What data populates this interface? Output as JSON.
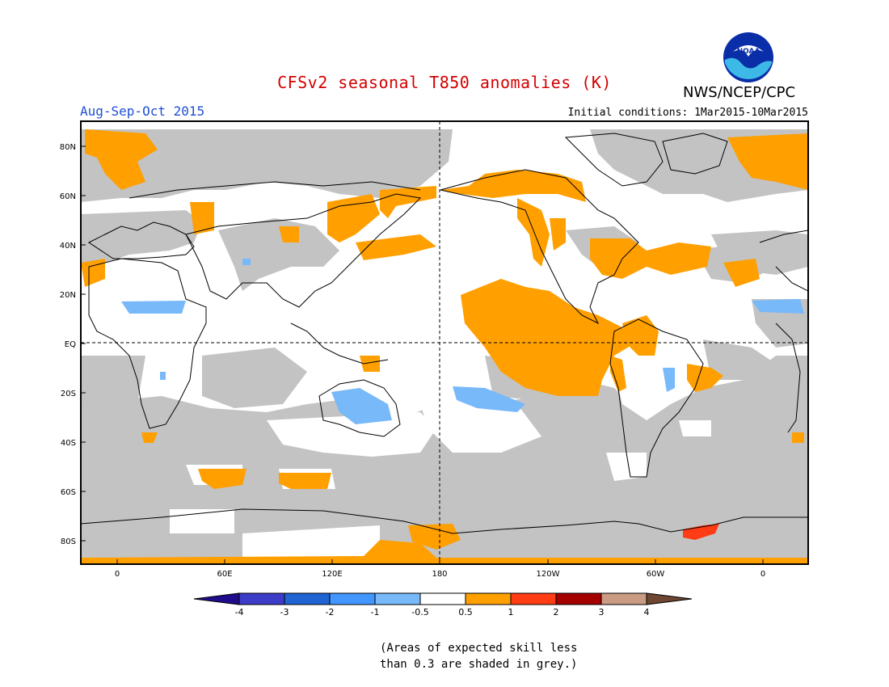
{
  "title": "CFSv2 seasonal T850 anomalies (K)",
  "season": "Aug-Sep-Oct 2015",
  "organization": "NWS/NCEP/CPC",
  "logo": "NOAA",
  "initial_conditions": {
    "label": "Initial conditions:",
    "value": "1Mar2015-10Mar2015"
  },
  "lat_labels": [
    "80N",
    "60N",
    "40N",
    "20N",
    "EQ",
    "20S",
    "40S",
    "60S",
    "80S"
  ],
  "lon_labels": [
    "0",
    "60E",
    "120E",
    "180",
    "120W",
    "60W",
    "0"
  ],
  "colorbar": {
    "labels": [
      "-4",
      "-3",
      "-2",
      "-1",
      "-0.5",
      "0.5",
      "1",
      "2",
      "3",
      "4"
    ],
    "colors": [
      "#1e0c8c",
      "#3c3cc8",
      "#1f64d2",
      "#4196ff",
      "#78b9fa",
      "#ffffff",
      "#ff9f00",
      "#ff3c14",
      "#a50000",
      "#c89b82",
      "#6e4632"
    ]
  },
  "note": {
    "line1": "(Areas of expected skill less",
    "line2": "than 0.3 are shaded in grey.)"
  },
  "colors": {
    "grey_low_skill": "#c3c3c3",
    "warm_0_5_1": "#ff9f00",
    "warm_1_2": "#ff3c14",
    "cool_neg1_neg0_5": "#78b9fa",
    "cool_neg2_neg1": "#4196ff"
  }
}
